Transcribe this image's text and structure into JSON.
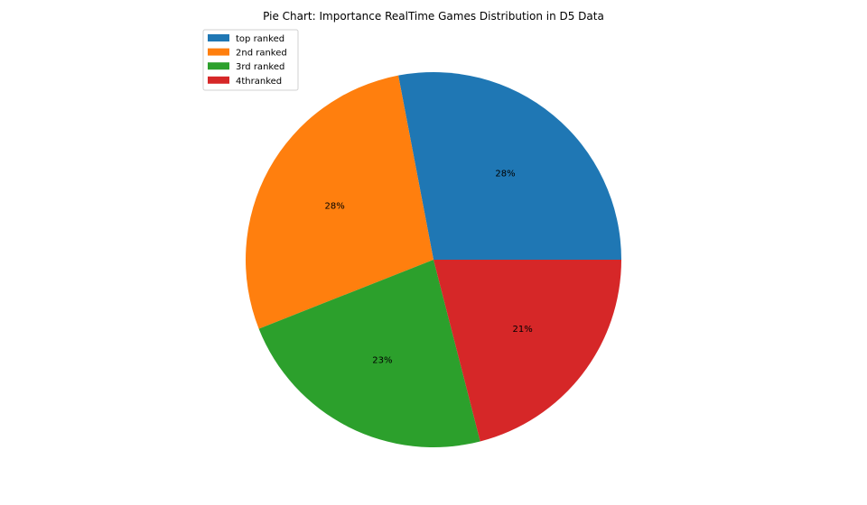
{
  "chart_data": {
    "type": "pie",
    "title": "Pie Chart: Importance RealTime Games Distribution in D5 Data",
    "categories": [
      "top ranked",
      "2nd ranked",
      "3rd ranked",
      "4thranked"
    ],
    "values": [
      28,
      28,
      23,
      21
    ],
    "labels": [
      "28%",
      "28%",
      "23%",
      "21%"
    ],
    "colors": [
      "#1f77b4",
      "#ff7f0e",
      "#2ca02c",
      "#d62728"
    ],
    "start_angle_deg": 0,
    "direction": "counterclockwise",
    "legend_position": "upper-left"
  }
}
